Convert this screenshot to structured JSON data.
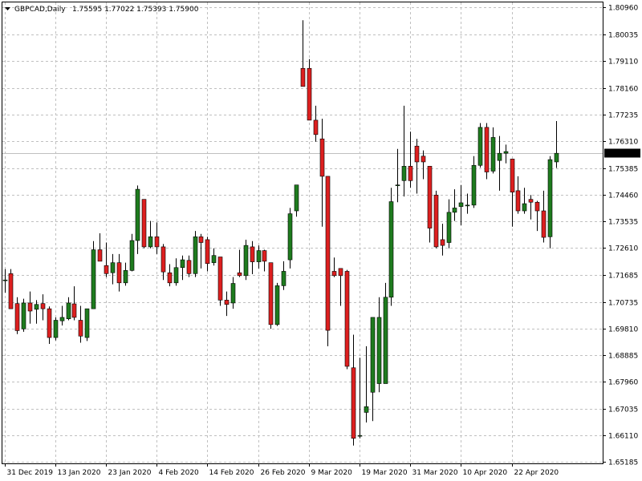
{
  "header": {
    "symbol": "GBPCAD,Daily",
    "ohlc": "1.75595 1.77022 1.75393 1.75900",
    "menu_icon": "triangle-down-icon"
  },
  "chart_data": {
    "type": "candlestick",
    "symbol": "GBPCAD",
    "timeframe": "Daily",
    "ylim": [
      1.6513,
      1.8114
    ],
    "grid": true,
    "colors": {
      "bull": "#1e7b1e",
      "bear": "#dd1f1f",
      "price_line": "#c0c0c0",
      "label_bg": "#000000",
      "label_text": "#ffffff"
    },
    "current_price": "1.75900",
    "y_ticks": [
      "1.80960",
      "1.80035",
      "1.79110",
      "1.78160",
      "1.77235",
      "1.76310",
      "1.75385",
      "1.74460",
      "1.73535",
      "1.72610",
      "1.71685",
      "1.70735",
      "1.69810",
      "1.68885",
      "1.67960",
      "1.67035",
      "1.66110",
      "1.65185"
    ],
    "x_ticks": [
      "31 Dec 2019",
      "13 Jan 2020",
      "23 Jan 2020",
      "4 Feb 2020",
      "14 Feb 2020",
      "26 Feb 2020",
      "9 Mar 2020",
      "19 Mar 2020",
      "31 Mar 2020",
      "10 Apr 2020",
      "22 Apr 2020"
    ],
    "candles": [
      {
        "o": 1.715,
        "h": 1.7188,
        "l": 1.7106,
        "c": 1.715
      },
      {
        "o": 1.7172,
        "h": 1.7188,
        "l": 1.705,
        "c": 1.705
      },
      {
        "o": 1.7068,
        "h": 1.709,
        "l": 1.6962,
        "c": 1.6974
      },
      {
        "o": 1.698,
        "h": 1.7085,
        "l": 1.697,
        "c": 1.707
      },
      {
        "o": 1.707,
        "h": 1.711,
        "l": 1.6998,
        "c": 1.7042
      },
      {
        "o": 1.7048,
        "h": 1.708,
        "l": 1.6998,
        "c": 1.7065
      },
      {
        "o": 1.7068,
        "h": 1.71,
        "l": 1.701,
        "c": 1.705
      },
      {
        "o": 1.705,
        "h": 1.7058,
        "l": 1.6928,
        "c": 1.695
      },
      {
        "o": 1.695,
        "h": 1.702,
        "l": 1.694,
        "c": 1.701
      },
      {
        "o": 1.7008,
        "h": 1.706,
        "l": 1.6992,
        "c": 1.702
      },
      {
        "o": 1.7015,
        "h": 1.709,
        "l": 1.701,
        "c": 1.707
      },
      {
        "o": 1.7067,
        "h": 1.7128,
        "l": 1.701,
        "c": 1.702
      },
      {
        "o": 1.701,
        "h": 1.706,
        "l": 1.6932,
        "c": 1.6955
      },
      {
        "o": 1.695,
        "h": 1.705,
        "l": 1.6938,
        "c": 1.705
      },
      {
        "o": 1.705,
        "h": 1.7285,
        "l": 1.705,
        "c": 1.7255
      },
      {
        "o": 1.7255,
        "h": 1.7312,
        "l": 1.722,
        "c": 1.7215
      },
      {
        "o": 1.72,
        "h": 1.728,
        "l": 1.716,
        "c": 1.7172
      },
      {
        "o": 1.7175,
        "h": 1.724,
        "l": 1.7135,
        "c": 1.721
      },
      {
        "o": 1.721,
        "h": 1.724,
        "l": 1.711,
        "c": 1.714
      },
      {
        "o": 1.714,
        "h": 1.721,
        "l": 1.713,
        "c": 1.7183
      },
      {
        "o": 1.7183,
        "h": 1.731,
        "l": 1.718,
        "c": 1.7287
      },
      {
        "o": 1.7287,
        "h": 1.7478,
        "l": 1.724,
        "c": 1.7465
      },
      {
        "o": 1.743,
        "h": 1.743,
        "l": 1.726,
        "c": 1.7265
      },
      {
        "o": 1.7265,
        "h": 1.7355,
        "l": 1.726,
        "c": 1.73
      },
      {
        "o": 1.73,
        "h": 1.735,
        "l": 1.724,
        "c": 1.7265
      },
      {
        "o": 1.7265,
        "h": 1.7275,
        "l": 1.715,
        "c": 1.7178
      },
      {
        "o": 1.7175,
        "h": 1.7205,
        "l": 1.7128,
        "c": 1.714
      },
      {
        "o": 1.714,
        "h": 1.7225,
        "l": 1.713,
        "c": 1.7193
      },
      {
        "o": 1.7193,
        "h": 1.7235,
        "l": 1.715,
        "c": 1.722
      },
      {
        "o": 1.7218,
        "h": 1.7235,
        "l": 1.716,
        "c": 1.7172
      },
      {
        "o": 1.7172,
        "h": 1.732,
        "l": 1.716,
        "c": 1.73
      },
      {
        "o": 1.73,
        "h": 1.731,
        "l": 1.719,
        "c": 1.728
      },
      {
        "o": 1.729,
        "h": 1.73,
        "l": 1.718,
        "c": 1.7207
      },
      {
        "o": 1.721,
        "h": 1.726,
        "l": 1.72,
        "c": 1.7235
      },
      {
        "o": 1.723,
        "h": 1.723,
        "l": 1.706,
        "c": 1.708
      },
      {
        "o": 1.708,
        "h": 1.711,
        "l": 1.7025,
        "c": 1.7065
      },
      {
        "o": 1.707,
        "h": 1.716,
        "l": 1.705,
        "c": 1.7138
      },
      {
        "o": 1.7175,
        "h": 1.7255,
        "l": 1.716,
        "c": 1.7165
      },
      {
        "o": 1.7165,
        "h": 1.729,
        "l": 1.715,
        "c": 1.727
      },
      {
        "o": 1.7265,
        "h": 1.7285,
        "l": 1.717,
        "c": 1.7213
      },
      {
        "o": 1.7213,
        "h": 1.727,
        "l": 1.719,
        "c": 1.7252
      },
      {
        "o": 1.7252,
        "h": 1.7255,
        "l": 1.718,
        "c": 1.7215
      },
      {
        "o": 1.721,
        "h": 1.721,
        "l": 1.698,
        "c": 1.6995
      },
      {
        "o": 1.6995,
        "h": 1.714,
        "l": 1.699,
        "c": 1.713
      },
      {
        "o": 1.713,
        "h": 1.7215,
        "l": 1.7115,
        "c": 1.718
      },
      {
        "o": 1.722,
        "h": 1.74,
        "l": 1.719,
        "c": 1.738
      },
      {
        "o": 1.739,
        "h": 1.748,
        "l": 1.737,
        "c": 1.748
      },
      {
        "o": 1.7885,
        "h": 1.8052,
        "l": 1.7822,
        "c": 1.7822
      },
      {
        "o": 1.7885,
        "h": 1.7917,
        "l": 1.7705,
        "c": 1.7705
      },
      {
        "o": 1.7705,
        "h": 1.7755,
        "l": 1.763,
        "c": 1.7655
      },
      {
        "o": 1.764,
        "h": 1.771,
        "l": 1.7335,
        "c": 1.751
      },
      {
        "o": 1.751,
        "h": 1.751,
        "l": 1.692,
        "c": 1.6975
      },
      {
        "o": 1.718,
        "h": 1.7228,
        "l": 1.716,
        "c": 1.7165
      },
      {
        "o": 1.719,
        "h": 1.719,
        "l": 1.706,
        "c": 1.7165
      },
      {
        "o": 1.718,
        "h": 1.7185,
        "l": 1.684,
        "c": 1.685
      },
      {
        "o": 1.6845,
        "h": 1.696,
        "l": 1.6575,
        "c": 1.66
      },
      {
        "o": 1.661,
        "h": 1.688,
        "l": 1.66,
        "c": 1.661
      },
      {
        "o": 1.669,
        "h": 1.692,
        "l": 1.6655,
        "c": 1.671
      },
      {
        "o": 1.676,
        "h": 1.702,
        "l": 1.666,
        "c": 1.702
      },
      {
        "o": 1.679,
        "h": 1.709,
        "l": 1.676,
        "c": 1.702
      },
      {
        "o": 1.679,
        "h": 1.714,
        "l": 1.679,
        "c": 1.709
      },
      {
        "o": 1.709,
        "h": 1.747,
        "l": 1.706,
        "c": 1.7422
      },
      {
        "o": 1.748,
        "h": 1.7605,
        "l": 1.742,
        "c": 1.748
      },
      {
        "o": 1.7495,
        "h": 1.7755,
        "l": 1.744,
        "c": 1.7545
      },
      {
        "o": 1.7545,
        "h": 1.7665,
        "l": 1.747,
        "c": 1.7495
      },
      {
        "o": 1.7615,
        "h": 1.764,
        "l": 1.745,
        "c": 1.756
      },
      {
        "o": 1.758,
        "h": 1.76,
        "l": 1.75,
        "c": 1.756
      },
      {
        "o": 1.7545,
        "h": 1.7545,
        "l": 1.728,
        "c": 1.733
      },
      {
        "o": 1.7445,
        "h": 1.746,
        "l": 1.726,
        "c": 1.7265
      },
      {
        "o": 1.729,
        "h": 1.7345,
        "l": 1.7235,
        "c": 1.727
      },
      {
        "o": 1.728,
        "h": 1.743,
        "l": 1.726,
        "c": 1.7385
      },
      {
        "o": 1.7385,
        "h": 1.7465,
        "l": 1.7355,
        "c": 1.74
      },
      {
        "o": 1.7405,
        "h": 1.748,
        "l": 1.734,
        "c": 1.7418
      },
      {
        "o": 1.741,
        "h": 1.745,
        "l": 1.738,
        "c": 1.741
      },
      {
        "o": 1.741,
        "h": 1.758,
        "l": 1.74,
        "c": 1.7548
      },
      {
        "o": 1.7548,
        "h": 1.7695,
        "l": 1.754,
        "c": 1.768
      },
      {
        "o": 1.768,
        "h": 1.7695,
        "l": 1.75,
        "c": 1.7525
      },
      {
        "o": 1.7528,
        "h": 1.768,
        "l": 1.752,
        "c": 1.7645
      },
      {
        "o": 1.7565,
        "h": 1.765,
        "l": 1.746,
        "c": 1.759
      },
      {
        "o": 1.759,
        "h": 1.762,
        "l": 1.7555,
        "c": 1.7596
      },
      {
        "o": 1.757,
        "h": 1.757,
        "l": 1.7335,
        "c": 1.7455
      },
      {
        "o": 1.746,
        "h": 1.751,
        "l": 1.738,
        "c": 1.739
      },
      {
        "o": 1.739,
        "h": 1.747,
        "l": 1.738,
        "c": 1.7415
      },
      {
        "o": 1.743,
        "h": 1.7445,
        "l": 1.736,
        "c": 1.742
      },
      {
        "o": 1.742,
        "h": 1.7425,
        "l": 1.732,
        "c": 1.739
      },
      {
        "o": 1.739,
        "h": 1.746,
        "l": 1.728,
        "c": 1.7298
      },
      {
        "o": 1.73,
        "h": 1.758,
        "l": 1.726,
        "c": 1.7568
      },
      {
        "o": 1.756,
        "h": 1.7702,
        "l": 1.7539,
        "c": 1.759
      }
    ]
  }
}
